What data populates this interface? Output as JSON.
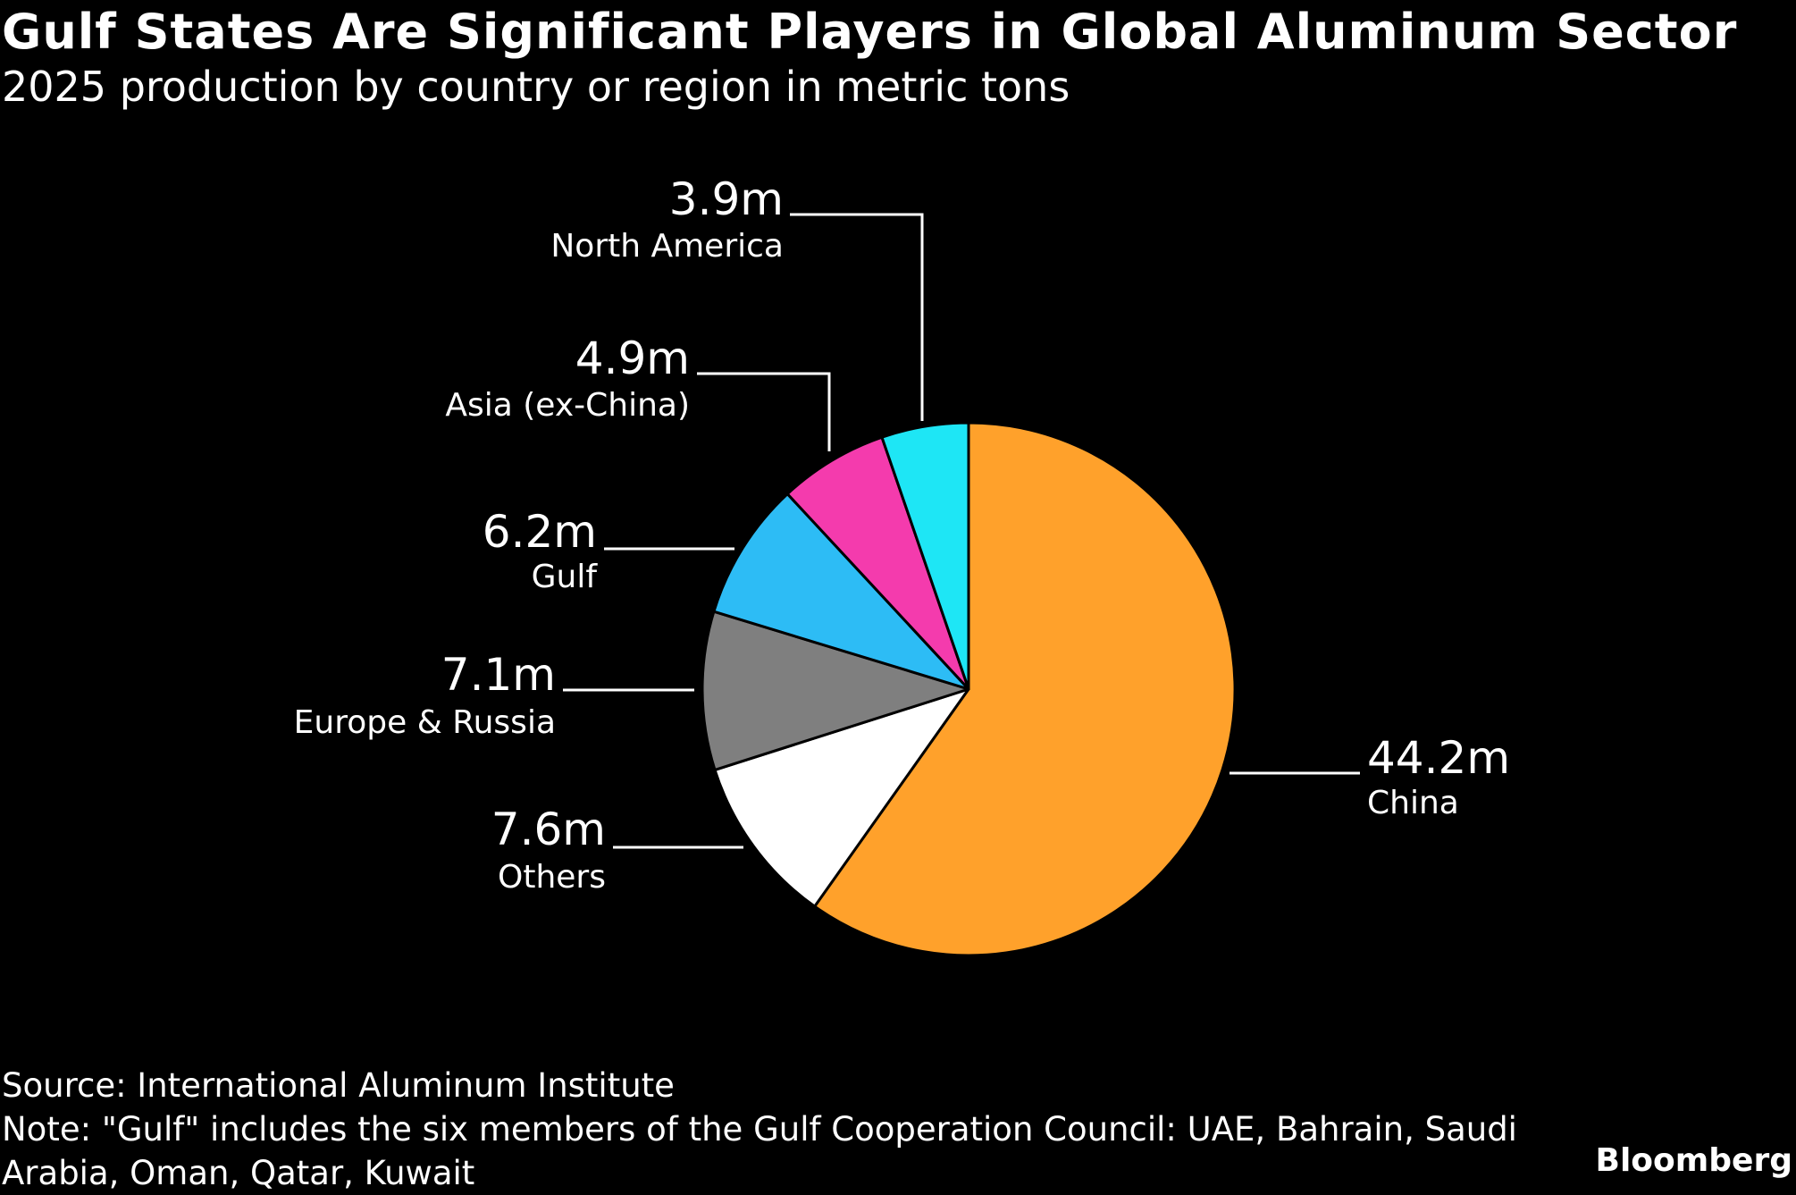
{
  "chart_data": {
    "type": "pie",
    "title": "Gulf States Are Significant Players in Global Aluminum Sector",
    "subtitle": "2025 production by country or region in metric tons",
    "unit": "metric tons",
    "slices": [
      {
        "label": "China",
        "value": 44.2,
        "display": "44.2m",
        "color": "#FFA12B"
      },
      {
        "label": "Others",
        "value": 7.6,
        "display": "7.6m",
        "color": "#FFFFFF"
      },
      {
        "label": "Europe & Russia",
        "value": 7.1,
        "display": "7.1m",
        "color": "#7F7F7F"
      },
      {
        "label": "Gulf",
        "value": 6.2,
        "display": "6.2m",
        "color": "#2DBCF5"
      },
      {
        "label": "Asia (ex-China)",
        "value": 4.9,
        "display": "4.9m",
        "color": "#F43BAD"
      },
      {
        "label": "North America",
        "value": 3.9,
        "display": "3.9m",
        "color": "#1EE6F5"
      }
    ],
    "start": "12 o'clock",
    "direction": "clockwise"
  },
  "source": "Source: International Aluminum Institute",
  "note": "Note: \"Gulf\" includes the six members of the Gulf Cooperation Council: UAE, Bahrain, Saudi Arabia, Oman, Qatar, Kuwait",
  "brand": "Bloomberg"
}
